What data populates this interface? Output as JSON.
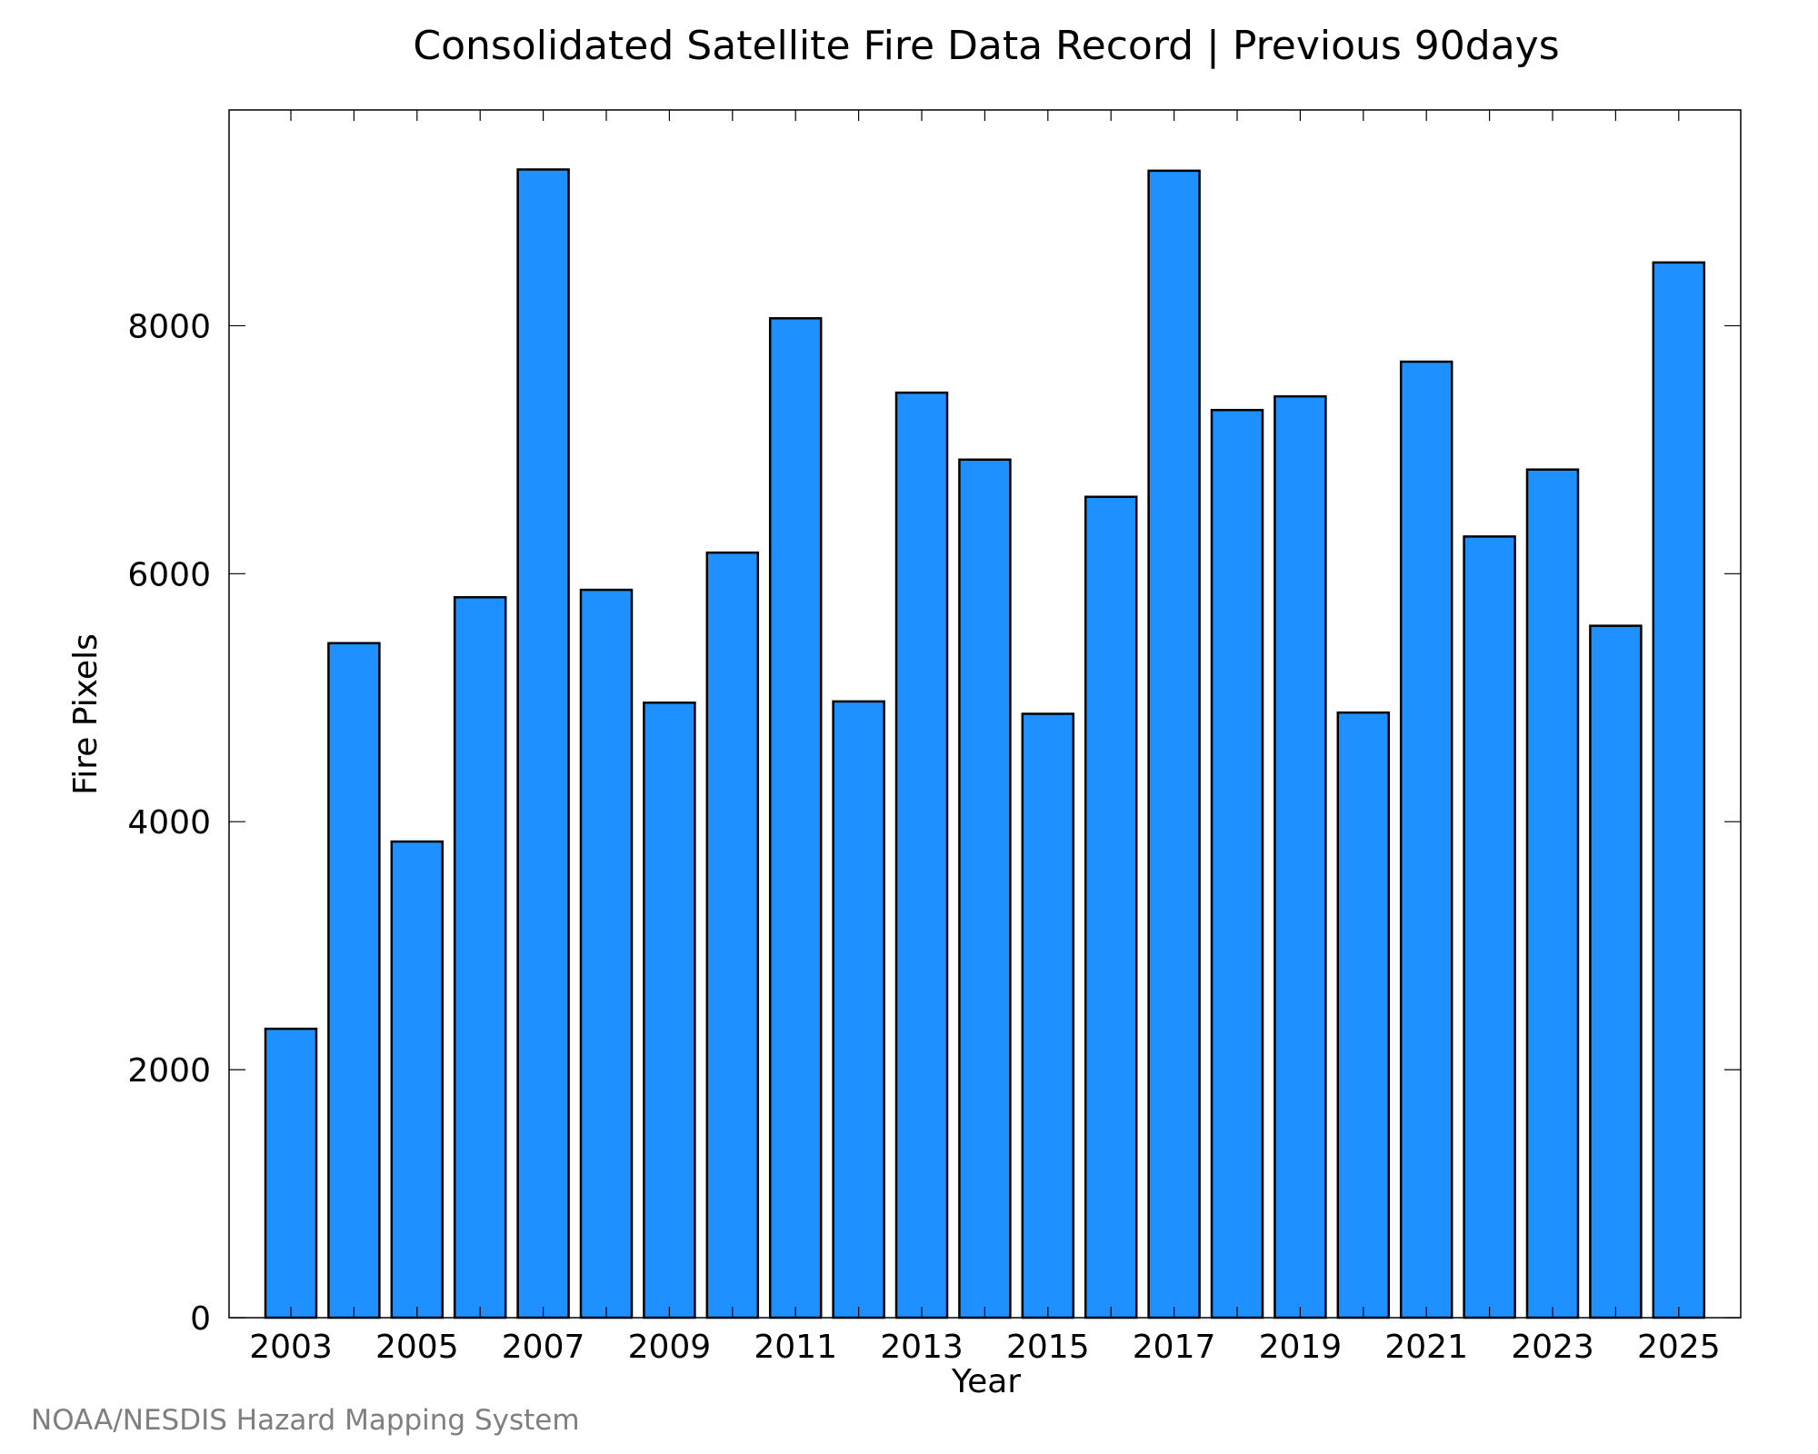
{
  "chart_data": {
    "type": "bar",
    "title": "Consolidated Satellite Fire Data Record | Previous 90days",
    "xlabel": "Year",
    "ylabel": "Fire Pixels",
    "categories": [
      "2003",
      "2004",
      "2005",
      "2006",
      "2007",
      "2008",
      "2009",
      "2010",
      "2011",
      "2012",
      "2013",
      "2014",
      "2015",
      "2016",
      "2017",
      "2018",
      "2019",
      "2020",
      "2021",
      "2022",
      "2023",
      "2024",
      "2025"
    ],
    "values": [
      2330,
      5440,
      3840,
      5810,
      9260,
      5870,
      4960,
      6170,
      8060,
      4970,
      7460,
      6920,
      4870,
      6620,
      9250,
      7320,
      7430,
      4880,
      7710,
      6300,
      6840,
      5580,
      8510
    ],
    "xtick_labels": [
      "2003",
      "2005",
      "2007",
      "2009",
      "2011",
      "2013",
      "2015",
      "2017",
      "2019",
      "2021",
      "2023",
      "2025"
    ],
    "yticks": [
      0,
      2000,
      4000,
      6000,
      8000
    ],
    "ytick_labels": [
      "0",
      "2000",
      "4000",
      "6000",
      "8000"
    ],
    "ylim": [
      0,
      9740
    ],
    "grid": false,
    "bar_color": "#1e90ff",
    "bar_edge_color": "#000000"
  },
  "credit": "NOAA/NESDIS Hazard Mapping System"
}
